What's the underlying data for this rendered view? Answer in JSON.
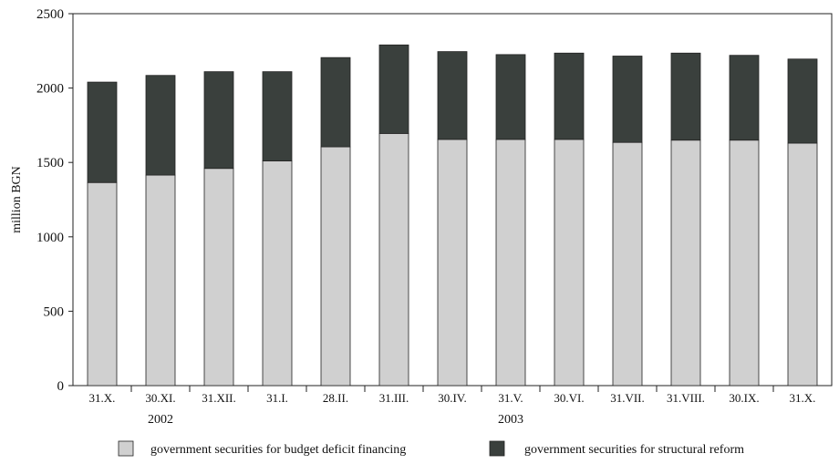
{
  "chart_data": {
    "type": "bar",
    "stacked": true,
    "ylabel": "million BGN",
    "ylim": [
      0,
      2500
    ],
    "yticks": [
      0,
      500,
      1000,
      1500,
      2000,
      2500
    ],
    "categories": [
      "31.X.",
      "30.XI.",
      "31.XII.",
      "31.I.",
      "28.II.",
      "31.III.",
      "30.IV.",
      "31.V.",
      "30.VI.",
      "31.VII.",
      "31.VIII.",
      "30.IX.",
      "31.X."
    ],
    "year_labels": [
      {
        "label": "2002",
        "category_index": 1
      },
      {
        "label": "2003",
        "category_index": 7
      }
    ],
    "series": [
      {
        "name": "government securities for budget deficit financing",
        "color": "#d0d0d0",
        "values": [
          1365,
          1415,
          1460,
          1510,
          1605,
          1695,
          1655,
          1655,
          1655,
          1635,
          1650,
          1650,
          1630
        ]
      },
      {
        "name": "government securities for structural reform",
        "color": "#3a403d",
        "values": [
          675,
          670,
          650,
          600,
          600,
          595,
          590,
          570,
          580,
          580,
          585,
          570,
          565
        ]
      }
    ],
    "grid": false,
    "legend_position": "bottom"
  }
}
